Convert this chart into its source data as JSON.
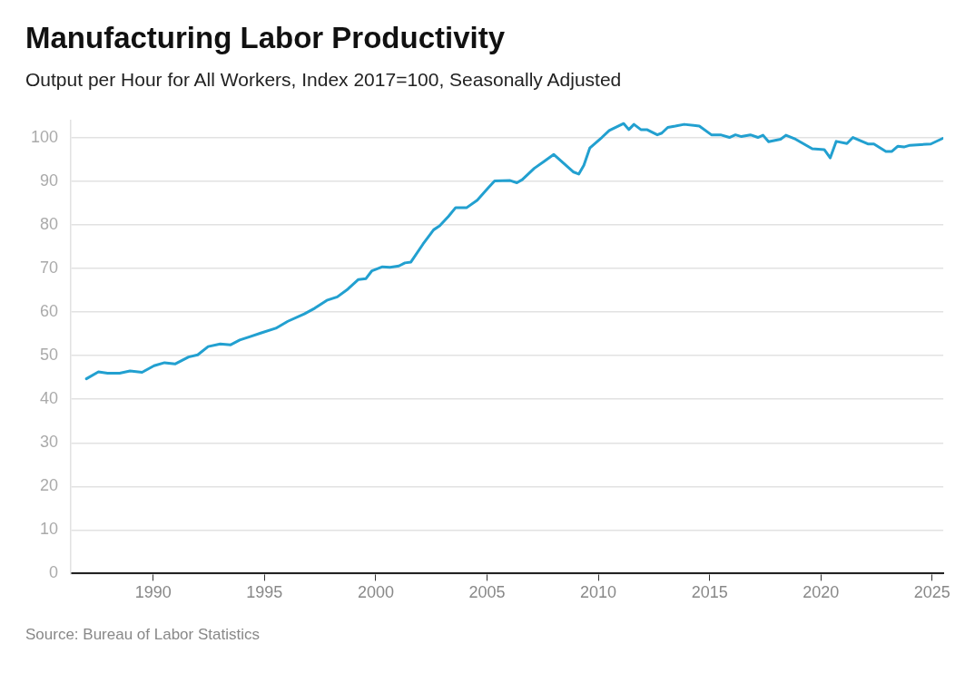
{
  "chart_data": {
    "type": "line",
    "title": "Manufacturing Labor Productivity",
    "subtitle": "Output per Hour for All Workers, Index 2017=100, Seasonally Adjusted",
    "annotations": [
      "Source: Bureau of Labor Statistics"
    ],
    "series": [
      {
        "color": "#22a0d0",
        "x": [
          1987.0,
          1987.54,
          1987.95,
          1988.49,
          1988.96,
          1989.5,
          1990.04,
          1990.51,
          1990.98,
          1991.59,
          1992.0,
          1992.47,
          1993.01,
          1993.48,
          1993.89,
          1994.36,
          1994.83,
          1995.51,
          1996.05,
          1996.79,
          1997.26,
          1997.8,
          1998.27,
          1998.75,
          1999.22,
          1999.56,
          1999.83,
          2000.3,
          2000.64,
          2001.04,
          2001.31,
          2001.58,
          2002.12,
          2002.6,
          2002.87,
          2003.27,
          2003.59,
          2004.09,
          2004.56,
          2005.03,
          2005.34,
          2006.04,
          2006.34,
          2006.58,
          2007.12,
          2007.59,
          2008.0,
          2008.87,
          2009.12,
          2009.35,
          2009.62,
          2010.16,
          2010.49,
          2011.14,
          2011.37,
          2011.6,
          2011.91,
          2012.18,
          2012.65,
          2012.85,
          2013.12,
          2013.46,
          2013.86,
          2014.54,
          2015.08,
          2015.49,
          2015.89,
          2016.16,
          2016.43,
          2016.83,
          2017.17,
          2017.4,
          2017.65,
          2018.19,
          2018.43,
          2018.86,
          2019.61,
          2020.15,
          2020.42,
          2020.69,
          2021.17,
          2021.44,
          2022.11,
          2022.38,
          2022.92,
          2023.19,
          2023.46,
          2023.73,
          2024.0,
          2024.94,
          2025.48
        ],
        "values": [
          44.7,
          46.3,
          46.0,
          46.0,
          46.5,
          46.2,
          47.7,
          48.4,
          48.1,
          49.7,
          50.2,
          52.1,
          52.7,
          52.5,
          53.6,
          54.4,
          55.2,
          56.3,
          57.9,
          59.6,
          60.9,
          62.7,
          63.5,
          65.3,
          67.5,
          67.7,
          69.5,
          70.4,
          70.3,
          70.6,
          71.3,
          71.5,
          75.6,
          78.9,
          79.8,
          82.0,
          84.0,
          84.0,
          85.7,
          88.4,
          90.1,
          90.2,
          89.7,
          90.4,
          93.0,
          94.7,
          96.2,
          92.2,
          91.7,
          93.7,
          97.7,
          100.1,
          101.7,
          103.3,
          101.9,
          103.1,
          101.9,
          101.9,
          100.7,
          101.1,
          102.4,
          102.7,
          103.1,
          102.7,
          100.7,
          100.7,
          100.1,
          100.7,
          100.3,
          100.7,
          100.1,
          100.6,
          99.1,
          99.7,
          100.6,
          99.7,
          97.5,
          97.3,
          95.4,
          99.2,
          98.7,
          100.1,
          98.6,
          98.6,
          96.9,
          96.9,
          98.1,
          97.9,
          98.3,
          98.6,
          99.9
        ]
      }
    ],
    "xlim": [
      1986.3,
      2025.5
    ],
    "xticks": [
      1990,
      1995,
      2000,
      2005,
      2010,
      2015,
      2020,
      2025
    ],
    "ylim": [
      0,
      104
    ],
    "yticks": [
      0,
      10,
      20,
      30,
      40,
      50,
      60,
      70,
      80,
      90,
      100
    ],
    "grid": "y",
    "legend": false,
    "marker": "none",
    "line_style": "solid"
  }
}
